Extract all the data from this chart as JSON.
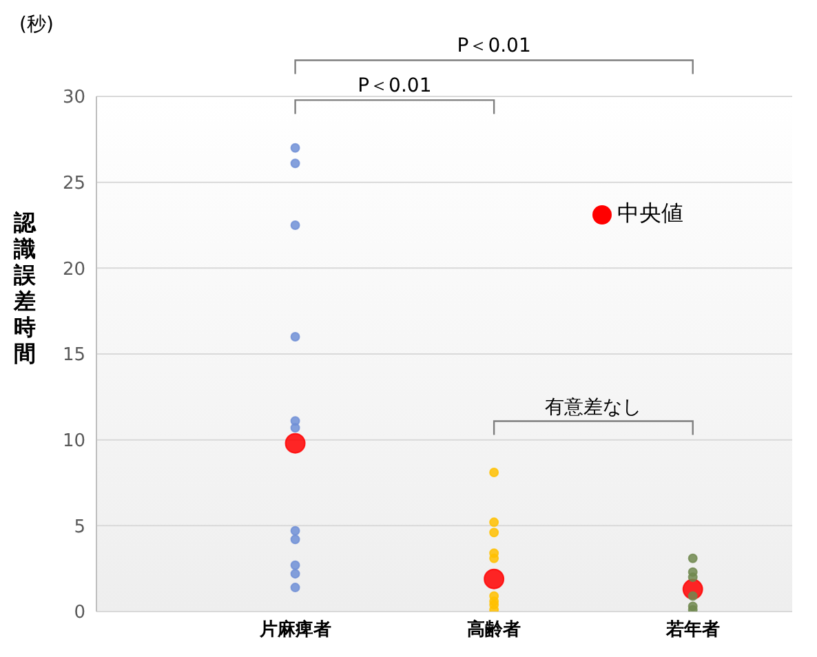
{
  "chart_data": {
    "type": "scatter",
    "ylabel": "認識誤差時間",
    "categories": [
      "片麻痺者",
      "高齢者",
      "若年者"
    ],
    "series": [
      {
        "color": "#6f8fd6",
        "x": [
          "片麻痺者",
          "片麻痺者",
          "片麻痺者",
          "片麻痺者",
          "片麻痺者",
          "片麻痺者",
          "片麻痺者",
          "片麻痺者",
          "片麻痺者",
          "片麻痺者",
          "片麻痺者"
        ],
        "values": [
          27.0,
          26.1,
          22.5,
          16.0,
          11.1,
          10.7,
          4.7,
          4.2,
          2.7,
          2.2,
          1.4
        ]
      },
      {
        "color": "#ffc000",
        "x": [
          "高齢者",
          "高齢者",
          "高齢者",
          "高齢者",
          "高齢者",
          "高齢者",
          "高齢者",
          "高齢者",
          "高齢者"
        ],
        "values": [
          8.1,
          5.2,
          4.6,
          3.4,
          3.1,
          0.9,
          0.6,
          0.4,
          0.1
        ]
      },
      {
        "color": "#70884f",
        "x": [
          "若年者",
          "若年者",
          "若年者",
          "若年者",
          "若年者",
          "若年者"
        ],
        "values": [
          3.1,
          2.3,
          2.0,
          0.9,
          0.3,
          0.1
        ]
      },
      {
        "name": "中央値",
        "color": "#ff0000",
        "x": [
          "片麻痺者",
          "高齢者",
          "若年者"
        ],
        "values": [
          9.8,
          1.9,
          1.3
        ]
      }
    ],
    "ylim": [
      0,
      30
    ],
    "yticks": [
      0,
      5,
      10,
      15,
      20,
      25,
      30
    ],
    "grid": "y",
    "legend": "top right",
    "marker": "circle",
    "annotations": [
      "P＜0.01",
      "P＜0.01",
      "有意差なし",
      "(秒)"
    ]
  }
}
